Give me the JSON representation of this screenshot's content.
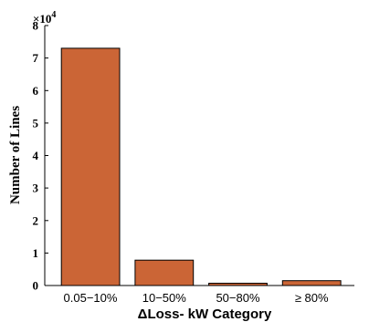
{
  "chart_data": {
    "type": "bar",
    "categories": [
      "0.05−10%",
      "10−50%",
      "50−80%",
      "≥ 80%"
    ],
    "values": [
      73000,
      7800,
      700,
      1500
    ],
    "title": "",
    "xlabel": "ΔLoss- kW Category",
    "ylabel": "Number of Lines",
    "ylim": [
      0,
      80000
    ],
    "ytick_values": [
      0,
      10000,
      20000,
      30000,
      40000,
      50000,
      60000,
      70000,
      80000
    ],
    "ytick_labels": [
      "0",
      "1",
      "2",
      "3",
      "4",
      "5",
      "6",
      "7",
      "8"
    ],
    "y_exponent_base": "×10",
    "y_exponent_power": "4",
    "bar_color": "#cb6536",
    "bar_edge_color": "#000000",
    "grid": false,
    "legend": null
  }
}
